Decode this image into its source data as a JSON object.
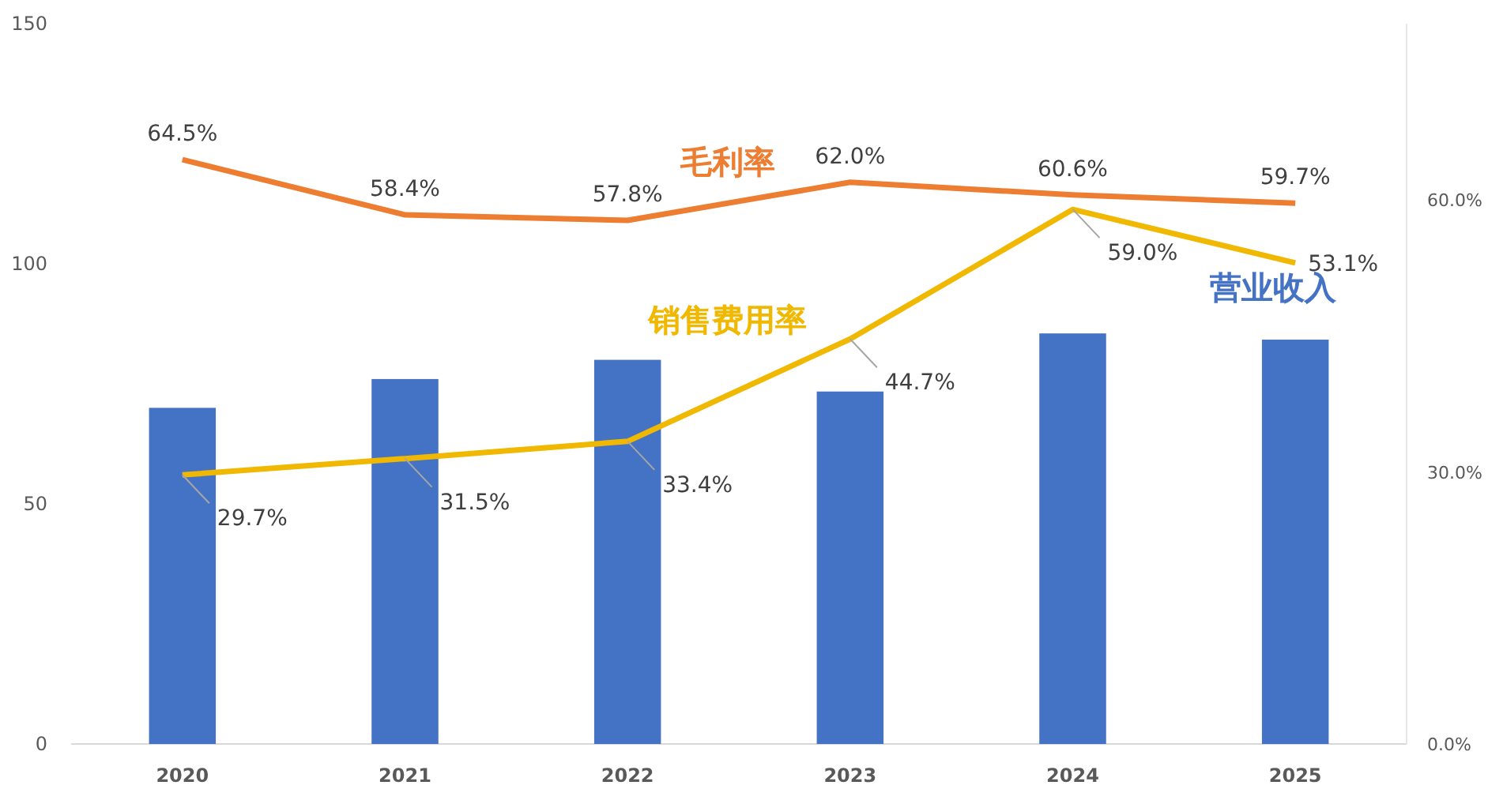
{
  "chart_data": {
    "type": "bar",
    "categories": [
      "2020",
      "2021",
      "2022",
      "2023",
      "2024",
      "2025"
    ],
    "ylim": [
      0,
      150
    ],
    "yticks": [
      0,
      50,
      100,
      150
    ],
    "y2lim": [
      0,
      79.5
    ],
    "y2ticks": [
      {
        "value": 0,
        "label": "0.0%"
      },
      {
        "value": 30,
        "label": "30.0%"
      },
      {
        "value": 60,
        "label": "60.0%"
      }
    ],
    "series": [
      {
        "name": "营业收入",
        "color": "#4472c4",
        "values": [
          70,
          76,
          80,
          73.4,
          85.5,
          84.2
        ]
      },
      {
        "name": "毛利率",
        "type": "line",
        "axis": "y2",
        "color": "#ed7d31",
        "values": [
          64.5,
          58.4,
          57.8,
          62.0,
          60.6,
          59.7
        ],
        "value_labels": [
          "64.5%",
          "58.4%",
          "57.8%",
          "62.0%",
          "60.6%",
          "59.7%"
        ]
      },
      {
        "name": "销售费用率",
        "type": "line",
        "axis": "y2",
        "color": "#f0b800",
        "values": [
          29.7,
          31.5,
          33.4,
          44.7,
          59.0,
          53.1
        ],
        "value_labels": [
          "29.7%",
          "31.5%",
          "33.4%",
          "44.7%",
          "59.0%",
          "53.1%"
        ]
      }
    ],
    "grid": false,
    "marker": "none",
    "line_style": "solid"
  }
}
